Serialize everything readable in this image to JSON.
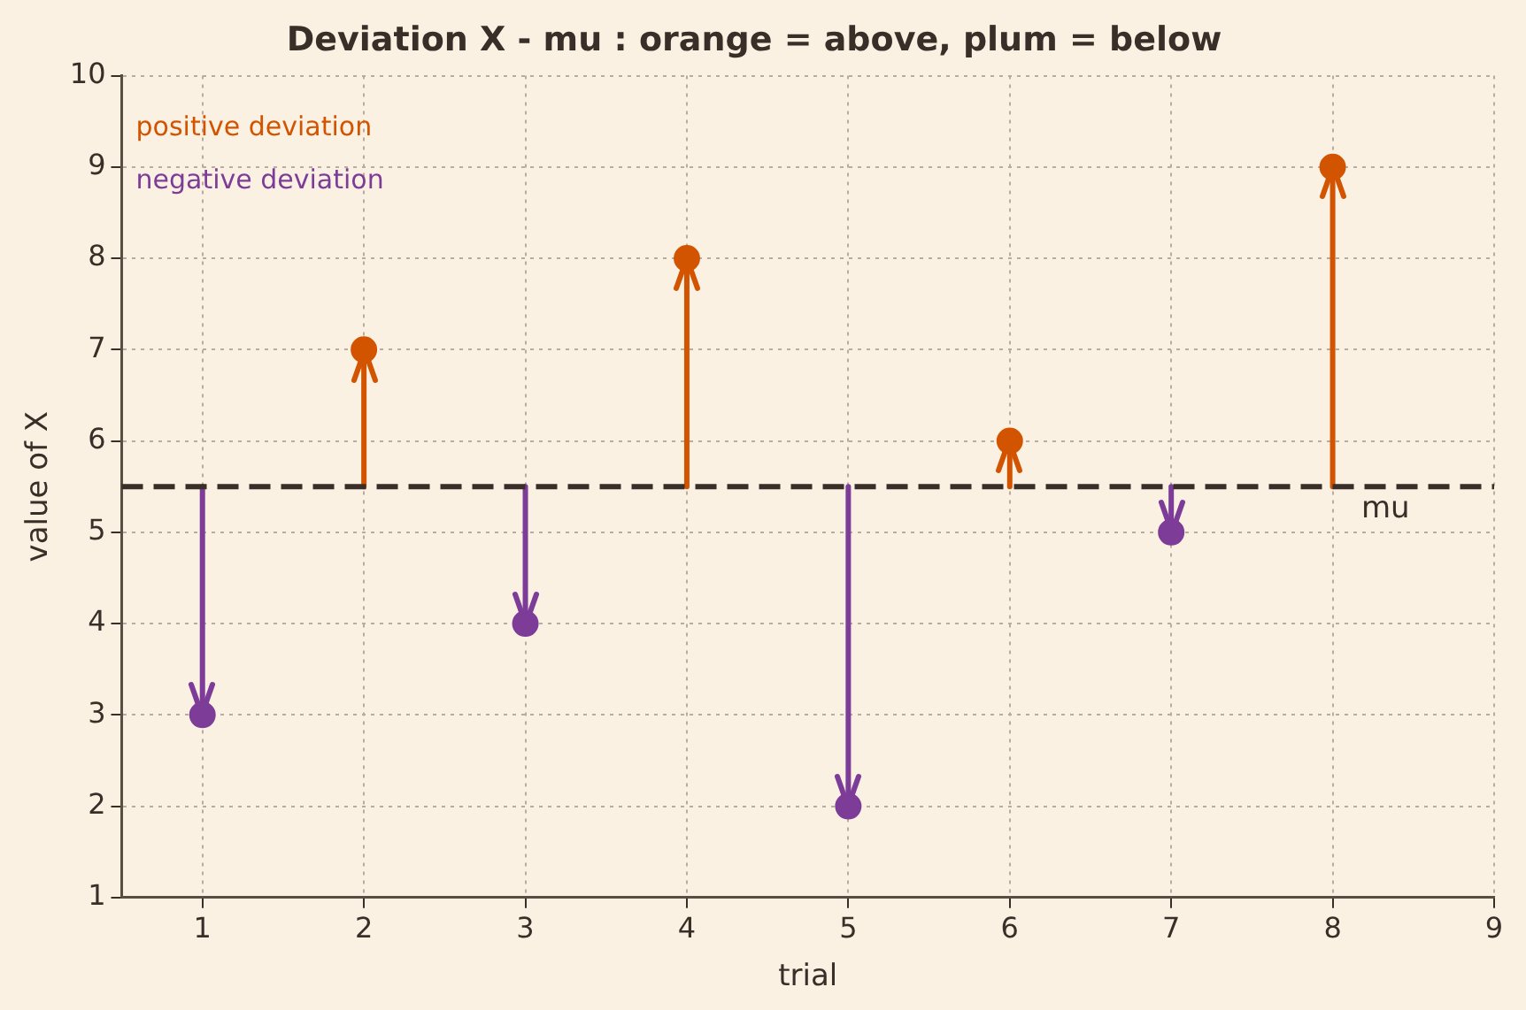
{
  "chart_data": {
    "type": "scatter",
    "title": "Deviation X - mu : orange = above, plum = below",
    "xlabel": "trial",
    "ylabel": "value of X",
    "series": [
      {
        "name": "positive deviation",
        "color": "#d35400",
        "x": [
          2,
          4,
          6,
          8
        ],
        "values": [
          7,
          8,
          6,
          9
        ],
        "errors": [
          [
            5.5,
            7
          ],
          [
            5.5,
            8
          ],
          [
            5.5,
            6
          ],
          [
            5.5,
            9
          ]
        ]
      },
      {
        "name": "negative deviation",
        "color": "#7d3c98",
        "x": [
          1,
          3,
          5,
          7
        ],
        "values": [
          3,
          4,
          2,
          5
        ],
        "errors": [
          [
            3,
            5.5
          ],
          [
            4,
            5.5
          ],
          [
            2,
            5.5
          ],
          [
            5,
            5.5
          ]
        ]
      }
    ],
    "xlim": [
      0.5,
      9
    ],
    "xticks": [
      1,
      2,
      3,
      4,
      5,
      6,
      7,
      8,
      9
    ],
    "ylim": [
      1,
      10
    ],
    "yticks": [
      1,
      2,
      3,
      4,
      5,
      6,
      7,
      8,
      9,
      10
    ],
    "ref_lines": [
      {
        "axis": "y",
        "value": 5.5,
        "label": "mu",
        "color": "#3a2e28",
        "line_style": "dashed"
      }
    ],
    "grid": true,
    "legend": "top left",
    "marker": "circle"
  }
}
